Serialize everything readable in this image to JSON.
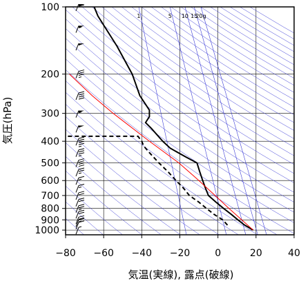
{
  "chart_data": {
    "type": "line",
    "subtype": "skew-t sounding (emagram)",
    "title": "",
    "xlabel": "気温(実線), 露点(破線)",
    "ylabel": "気圧(hPa)",
    "x_ticks": [
      "−80",
      "−60",
      "−40",
      "−20",
      "0",
      "20",
      "40"
    ],
    "xlim": [
      -80,
      40
    ],
    "y_ticks": [
      "100",
      "200",
      "300",
      "400",
      "500",
      "600",
      "700",
      "800",
      "900",
      "1000"
    ],
    "ylim": [
      1050,
      100
    ],
    "y_scale": "log",
    "grid": true,
    "mixing_ratio_labels": [
      "1",
      "5",
      "10",
      "15",
      "20g"
    ],
    "mixing_ratio_values": [
      1,
      5,
      10,
      15,
      20
    ],
    "series": [
      {
        "name": "",
        "style": "solid",
        "color": "#000000",
        "points": [
          {
            "p": 1000,
            "t": 18.5
          },
          {
            "p": 950,
            "t": 14
          },
          {
            "p": 900,
            "t": 10.5
          },
          {
            "p": 850,
            "t": 7
          },
          {
            "p": 800,
            "t": 3
          },
          {
            "p": 750,
            "t": -1
          },
          {
            "p": 700,
            "t": -5
          },
          {
            "p": 650,
            "t": -6.5
          },
          {
            "p": 600,
            "t": -8
          },
          {
            "p": 550,
            "t": -9.5
          },
          {
            "p": 500,
            "t": -11
          },
          {
            "p": 470,
            "t": -17
          },
          {
            "p": 430,
            "t": -25
          },
          {
            "p": 400,
            "t": -29
          },
          {
            "p": 350,
            "t": -35
          },
          {
            "p": 330,
            "t": -38
          },
          {
            "p": 310,
            "t": -36
          },
          {
            "p": 290,
            "t": -36
          },
          {
            "p": 250,
            "t": -41
          },
          {
            "p": 200,
            "t": -45
          },
          {
            "p": 150,
            "t": -53
          },
          {
            "p": 110,
            "t": -63
          },
          {
            "p": 100,
            "t": -65
          }
        ]
      },
      {
        "name": "",
        "style": "dashed",
        "color": "#000000",
        "points": [
          {
            "p": 950,
            "t": 5
          },
          {
            "p": 900,
            "t": 2.5
          },
          {
            "p": 850,
            "t": -2
          },
          {
            "p": 800,
            "t": -6
          },
          {
            "p": 750,
            "t": -10
          },
          {
            "p": 700,
            "t": -15
          },
          {
            "p": 650,
            "t": -18
          },
          {
            "p": 600,
            "t": -22
          },
          {
            "p": 550,
            "t": -26
          },
          {
            "p": 500,
            "t": -31
          },
          {
            "p": 450,
            "t": -36
          },
          {
            "p": 420,
            "t": -39
          },
          {
            "p": 400,
            "t": -40
          },
          {
            "p": 380,
            "t": -42
          },
          {
            "p": 380,
            "t": -79
          }
        ]
      },
      {
        "name": "",
        "style": "solid",
        "color": "#ff0000",
        "points": [
          {
            "p": 1000,
            "t": 18.5
          },
          {
            "p": 900,
            "t": 12.5
          },
          {
            "p": 800,
            "t": 5.8
          },
          {
            "p": 700,
            "t": -1.5
          },
          {
            "p": 600,
            "t": -10
          },
          {
            "p": 500,
            "t": -20.5
          },
          {
            "p": 400,
            "t": -36
          },
          {
            "p": 300,
            "t": -55
          },
          {
            "p": 250,
            "t": -66
          },
          {
            "p": 200,
            "t": -78
          }
        ]
      }
    ],
    "wind_barbs": [
      {
        "p": 1000,
        "speed_kt": 5
      },
      {
        "p": 950,
        "speed_kt": 10
      },
      {
        "p": 925,
        "speed_kt": 15
      },
      {
        "p": 900,
        "speed_kt": 20
      },
      {
        "p": 850,
        "speed_kt": 20
      },
      {
        "p": 800,
        "speed_kt": 25
      },
      {
        "p": 750,
        "speed_kt": 20
      },
      {
        "p": 700,
        "speed_kt": 20
      },
      {
        "p": 650,
        "speed_kt": 15
      },
      {
        "p": 600,
        "speed_kt": 15
      },
      {
        "p": 550,
        "speed_kt": 25
      },
      {
        "p": 500,
        "speed_kt": 40
      },
      {
        "p": 450,
        "speed_kt": 35
      },
      {
        "p": 400,
        "speed_kt": 45
      },
      {
        "p": 350,
        "speed_kt": 50
      },
      {
        "p": 300,
        "speed_kt": 55
      },
      {
        "p": 250,
        "speed_kt": 40
      },
      {
        "p": 200,
        "speed_kt": 35
      },
      {
        "p": 150,
        "speed_kt": 50
      },
      {
        "p": 125,
        "speed_kt": 55
      },
      {
        "p": 100,
        "speed_kt": 60
      }
    ]
  }
}
